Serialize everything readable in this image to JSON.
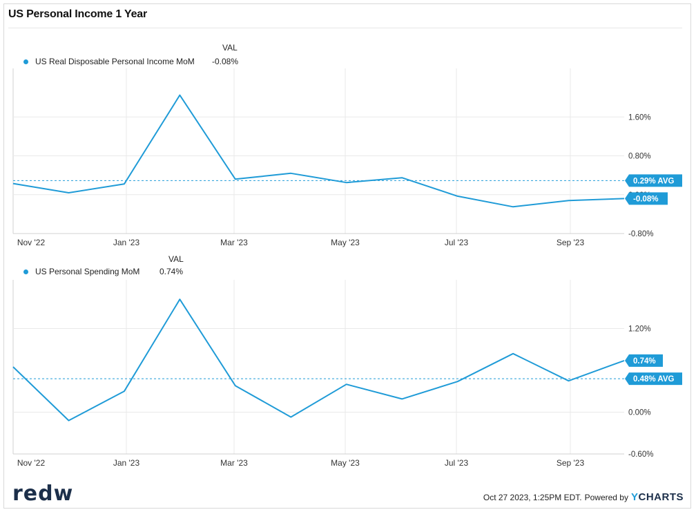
{
  "title": "US Personal Income 1 Year",
  "brand": "redw",
  "footer": {
    "timestamp": "Oct 27 2023, 1:25PM EDT.",
    "powered_by": "Powered by",
    "ycharts_y": "Y",
    "ycharts_rest": "CHARTS"
  },
  "colors": {
    "series": "#1f9bd7",
    "grid": "#e9e9e9",
    "label_bg": "#1f9bd7"
  },
  "chart_data": [
    {
      "type": "line",
      "val_header": "VAL",
      "series_name": "US Real Disposable Personal Income MoM",
      "series_value_label": "-0.08%",
      "x_tick_labels": [
        "Nov '22",
        "Jan '23",
        "Mar '23",
        "May '23",
        "Jul '23",
        "Sep '23"
      ],
      "x": [
        "Oct '22",
        "Nov '22",
        "Dec '22",
        "Jan '23",
        "Feb '23",
        "Mar '23",
        "Apr '23",
        "May '23",
        "Jun '23",
        "Jul '23",
        "Aug '23",
        "Sep '23"
      ],
      "values": [
        0.23,
        0.04,
        0.22,
        2.05,
        0.32,
        0.44,
        0.25,
        0.35,
        -0.03,
        -0.25,
        -0.12,
        -0.08
      ],
      "y_ticks": [
        1.6,
        0.8,
        0.0,
        -0.8
      ],
      "y_tick_labels": [
        "1.60%",
        "0.80%",
        "0.00%",
        "-0.80%"
      ],
      "ylim": [
        -0.8,
        2.6
      ],
      "avg": 0.29,
      "avg_label": "0.29% AVG",
      "last_label": "-0.08%"
    },
    {
      "type": "line",
      "val_header": "VAL",
      "series_name": "US Personal Spending MoM",
      "series_value_label": "0.74%",
      "x_tick_labels": [
        "Nov '22",
        "Jan '23",
        "Mar '23",
        "May '23",
        "Jul '23",
        "Sep '23"
      ],
      "x": [
        "Oct '22",
        "Nov '22",
        "Dec '22",
        "Jan '23",
        "Feb '23",
        "Mar '23",
        "Apr '23",
        "May '23",
        "Jun '23",
        "Jul '23",
        "Aug '23",
        "Sep '23"
      ],
      "values": [
        0.65,
        -0.12,
        0.3,
        1.62,
        0.38,
        -0.07,
        0.4,
        0.19,
        0.44,
        0.84,
        0.45,
        0.74
      ],
      "y_ticks": [
        1.2,
        0.0,
        -0.6
      ],
      "y_tick_labels": [
        "1.20%",
        "0.00%",
        "-0.60%"
      ],
      "ylim": [
        -0.6,
        1.9
      ],
      "avg": 0.48,
      "avg_label": "0.48% AVG",
      "last_label": "0.74%"
    }
  ]
}
